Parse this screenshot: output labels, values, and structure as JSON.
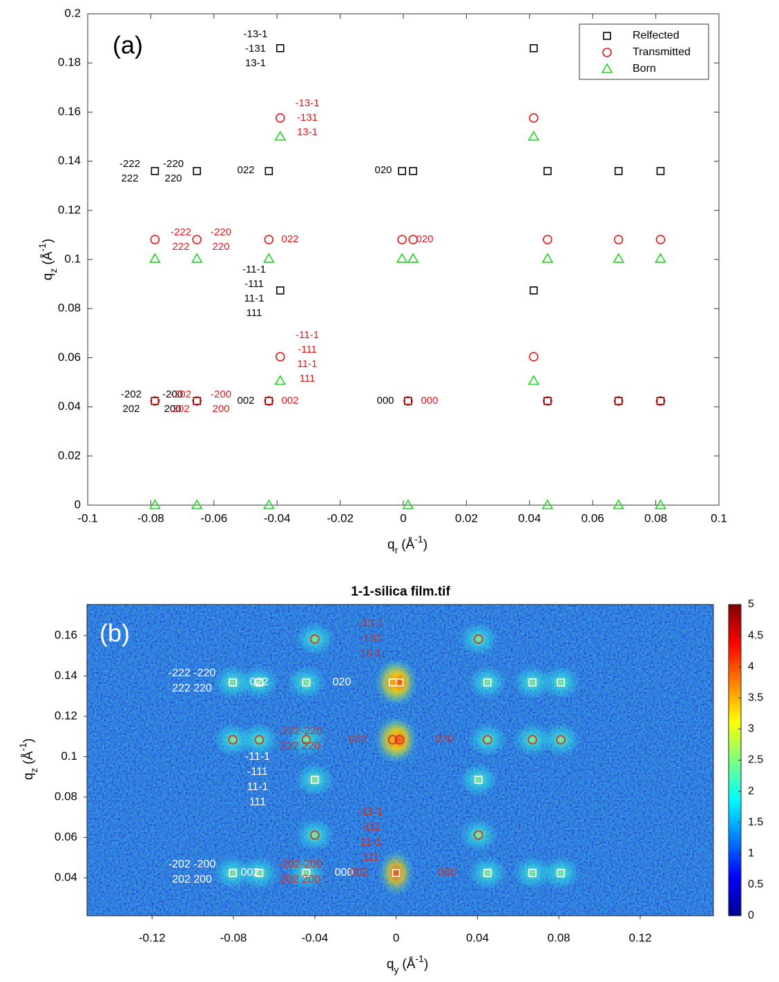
{
  "chart_data": [
    {
      "type": "scatter",
      "panel_label": "(a)",
      "x_label": [
        "q",
        "r",
        "(Å",
        "-1",
        ")"
      ],
      "y_label": [
        "q",
        "z",
        "(Å",
        "-1",
        ")"
      ],
      "xlim": [
        -0.1,
        0.1
      ],
      "xticks": [
        -0.1,
        -0.08,
        -0.06,
        -0.04,
        -0.02,
        0,
        0.02,
        0.04,
        0.06,
        0.08,
        0.1
      ],
      "ylim": [
        0,
        0.2
      ],
      "yticks": [
        0,
        0.02,
        0.04,
        0.06,
        0.08,
        0.1,
        0.12,
        0.14,
        0.16,
        0.18,
        0.2
      ],
      "legend": "upper right",
      "series": [
        {
          "name": "Relfected",
          "color": "#000000",
          "marker": "square",
          "x": [
            -0.039,
            0.0413,
            -0.0787,
            -0.0654,
            -0.0426,
            -0.0004,
            0.0031,
            0.0457,
            0.0682,
            0.0815,
            -0.039,
            0.0413,
            -0.0787,
            -0.0654,
            -0.0426,
            0.0015,
            0.0457,
            0.0682,
            0.0815
          ],
          "values": [
            0.186,
            0.186,
            0.136,
            0.136,
            0.136,
            0.136,
            0.136,
            0.136,
            0.136,
            0.136,
            0.0874,
            0.0874,
            0.0424,
            0.0424,
            0.0424,
            0.0424,
            0.0424,
            0.0424,
            0.0424
          ]
        },
        {
          "name": "Transmitted",
          "color": "#e8141a",
          "marker": "circle",
          "x": [
            -0.039,
            0.0413,
            -0.0787,
            -0.0654,
            -0.0426,
            -0.0004,
            0.0031,
            0.0457,
            0.0682,
            0.0815,
            -0.039,
            0.0413,
            -0.0787,
            -0.0654,
            -0.0426,
            0.0015,
            0.0457,
            0.0682,
            0.0815
          ],
          "values": [
            0.1576,
            0.1576,
            0.1081,
            0.1081,
            0.1081,
            0.1081,
            0.1081,
            0.1081,
            0.1081,
            0.1081,
            0.0604,
            0.0604,
            0.0424,
            0.0424,
            0.0424,
            0.0424,
            0.0424,
            0.0424,
            0.0424
          ]
        },
        {
          "name": "Born",
          "color": "#1fd41f",
          "marker": "triangle",
          "x": [
            -0.039,
            0.0413,
            -0.0787,
            -0.0654,
            -0.0426,
            -0.0004,
            0.0031,
            0.0457,
            0.0682,
            0.0815,
            -0.039,
            0.0413,
            -0.0787,
            -0.0654,
            -0.0426,
            0.0015,
            0.0457,
            0.0682,
            0.0815
          ],
          "values": [
            0.15,
            0.15,
            0.1003,
            0.1003,
            0.1003,
            0.1003,
            0.1003,
            0.1003,
            0.1003,
            0.1003,
            0.0506,
            0.0506,
            0,
            0,
            0,
            0,
            0,
            0,
            0
          ]
        }
      ],
      "annotations": [
        {
          "lines": [
            "-13-1",
            "-131",
            "13-1"
          ],
          "color": "#000000"
        },
        {
          "lines": [
            "-13-1",
            "-131",
            "13-1"
          ],
          "color": "#e8141a"
        },
        {
          "lines": [
            "-222",
            "222"
          ],
          "color": "#000000"
        },
        {
          "lines": [
            "-220",
            "220"
          ],
          "color": "#000000"
        },
        {
          "lines": [
            "022"
          ],
          "color": "#000000"
        },
        {
          "lines": [
            "020"
          ],
          "color": "#000000"
        },
        {
          "lines": [
            "-222",
            "222"
          ],
          "color": "#e8141a"
        },
        {
          "lines": [
            "-220",
            "220"
          ],
          "color": "#e8141a"
        },
        {
          "lines": [
            "022"
          ],
          "color": "#e8141a"
        },
        {
          "lines": [
            "020"
          ],
          "color": "#e8141a"
        },
        {
          "lines": [
            "-11-1",
            "-111",
            "11-1",
            "111"
          ],
          "color": "#000000"
        },
        {
          "lines": [
            "-11-1",
            "-111",
            "11-1",
            "111"
          ],
          "color": "#e8141a"
        },
        {
          "lines": [
            "-202",
            "202"
          ],
          "color": "#000000"
        },
        {
          "lines": [
            "-200",
            "200"
          ],
          "color": "#000000"
        },
        {
          "lines": [
            "-202",
            "202"
          ],
          "color": "#e8141a"
        },
        {
          "lines": [
            "-200",
            "200"
          ],
          "color": "#e8141a"
        },
        {
          "lines": [
            "002"
          ],
          "color": "#000000"
        },
        {
          "lines": [
            "002"
          ],
          "color": "#e8141a"
        },
        {
          "lines": [
            "000"
          ],
          "color": "#000000"
        },
        {
          "lines": [
            "000"
          ],
          "color": "#e8141a"
        }
      ]
    },
    {
      "type": "heatmap",
      "title": "1-1-silica film.tif",
      "panel_label": "(b)",
      "x_label": [
        "q",
        "y",
        "(Å",
        "-1",
        ")"
      ],
      "y_label": [
        "q",
        "z",
        "(Å",
        "-1",
        ")"
      ],
      "xlim": [
        -0.152,
        0.156
      ],
      "xticks": [
        -0.12,
        -0.08,
        -0.04,
        0,
        0.04,
        0.08,
        0.12
      ],
      "ylim": [
        0.0212,
        0.1754
      ],
      "yticks": [
        0.04,
        0.06,
        0.08,
        0.1,
        0.12,
        0.14,
        0.16
      ],
      "colormap": "jet",
      "colorbar": {
        "lim": [
          0,
          5
        ],
        "ticks": [
          0,
          0.5,
          1,
          1.5,
          2,
          2.5,
          3,
          3.5,
          4,
          4.5,
          5
        ]
      },
      "series": [
        {
          "color": "#ffffff",
          "marker": "square",
          "x": [
            -0.0803,
            -0.0673,
            -0.0442,
            -0.0017,
            0.0017,
            0.0449,
            0.067,
            0.081,
            -0.04,
            0.0405,
            -0.0803,
            -0.0673,
            -0.0442,
            0,
            0.0449,
            0.067,
            0.081
          ],
          "values": [
            0.1368,
            0.1368,
            0.1368,
            0.1368,
            0.1368,
            0.1368,
            0.1368,
            0.1368,
            0.0886,
            0.0886,
            0.0424,
            0.0424,
            0.0424,
            0.0424,
            0.0424,
            0.0424,
            0.0424
          ]
        },
        {
          "color": "#c8322d",
          "marker": "circle",
          "x": [
            -0.04,
            0.0405,
            -0.0803,
            -0.0673,
            -0.0442,
            -0.0017,
            0.0017,
            0.0449,
            0.067,
            0.081,
            -0.04,
            0.0405
          ],
          "values": [
            0.1583,
            0.1583,
            0.1084,
            0.1084,
            0.1084,
            0.1084,
            0.1084,
            0.1084,
            0.1084,
            0.1084,
            0.0612,
            0.0612
          ]
        }
      ],
      "annotations": [
        {
          "lines": [
            "-222 -220",
            "222 220"
          ],
          "color": "#ffffff"
        },
        {
          "lines": [
            "022"
          ],
          "color": "#ffffff"
        },
        {
          "lines": [
            "020"
          ],
          "color": "#ffffff"
        },
        {
          "lines": [
            "-11-1",
            "-111",
            "11-1",
            "111"
          ],
          "color": "#ffffff"
        },
        {
          "lines": [
            "-202 -200",
            "202 200"
          ],
          "color": "#ffffff"
        },
        {
          "lines": [
            "002"
          ],
          "color": "#ffffff"
        },
        {
          "lines": [
            "000"
          ],
          "color": "#ffffff"
        },
        {
          "lines": [
            "-13-1",
            "-131",
            "13-1"
          ],
          "color": "#c8322d"
        },
        {
          "lines": [
            "-222-220",
            "222 220"
          ],
          "color": "#c8322d"
        },
        {
          "lines": [
            "022"
          ],
          "color": "#c8322d"
        },
        {
          "lines": [
            "020"
          ],
          "color": "#c8322d"
        },
        {
          "lines": [
            "-11-1",
            "-111",
            "11-1",
            "111"
          ],
          "color": "#c8322d"
        },
        {
          "lines": [
            "-202-200",
            "202 200"
          ],
          "color": "#c8322d"
        },
        {
          "lines": [
            "002"
          ],
          "color": "#c8322d"
        },
        {
          "lines": [
            "000"
          ],
          "color": "#c8322d"
        }
      ]
    }
  ]
}
